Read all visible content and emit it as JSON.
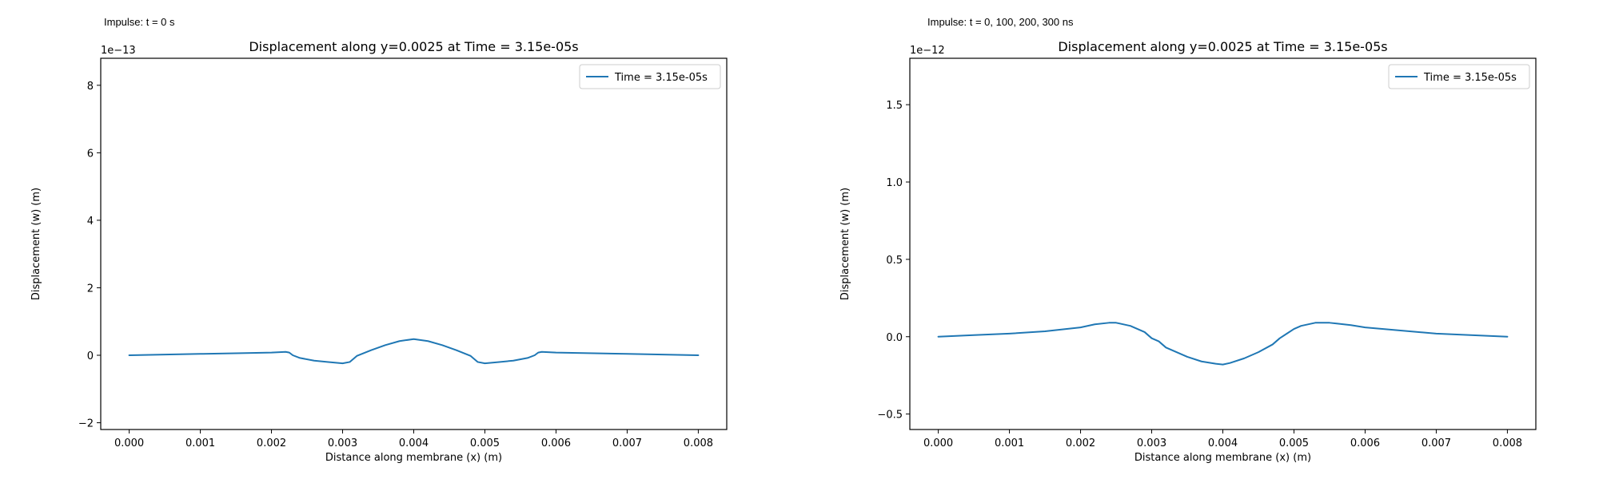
{
  "panels": {
    "left": {
      "caption": "Impulse: t = 0 s"
    },
    "right": {
      "caption": "Impulse: t = 0, 100, 200, 300 ns"
    }
  },
  "colors": {
    "series": "#1f77b4",
    "axes": "#000000"
  },
  "chart_data": [
    {
      "type": "line",
      "title": "Displacement along y=0.0025 at Time = 3.15e-05s",
      "xlabel": "Distance along membrane (x) (m)",
      "ylabel": "Displacement (w) (m)",
      "y_offset_label": "1e−13",
      "xlim": [
        -0.0004,
        0.0084
      ],
      "ylim": [
        -2.2,
        8.8
      ],
      "xticks": [
        0,
        0.001,
        0.002,
        0.003,
        0.004,
        0.005,
        0.006,
        0.007,
        0.008
      ],
      "xtick_labels": [
        "0.000",
        "0.001",
        "0.002",
        "0.003",
        "0.004",
        "0.005",
        "0.006",
        "0.007",
        "0.008"
      ],
      "yticks": [
        -2,
        0,
        2,
        4,
        6,
        8
      ],
      "ytick_labels": [
        "−2",
        "0",
        "2",
        "4",
        "6",
        "8"
      ],
      "legend_loc": "upper-right",
      "series": [
        {
          "name": "Time = 3.15e-05s",
          "x": [
            0,
            0.0005,
            0.001,
            0.0015,
            0.002,
            0.0022,
            0.00225,
            0.0023,
            0.0024,
            0.0026,
            0.0028,
            0.003,
            0.0031,
            0.0032,
            0.0034,
            0.0036,
            0.0038,
            0.004,
            0.0042,
            0.0044,
            0.0046,
            0.0048,
            0.0049,
            0.005,
            0.0052,
            0.0054,
            0.0056,
            0.0057,
            0.00575,
            0.0058,
            0.006,
            0.007,
            0.008
          ],
          "y": [
            0,
            0.02,
            0.04,
            0.06,
            0.08,
            0.1,
            0.08,
            0.0,
            -0.08,
            -0.16,
            -0.2,
            -0.24,
            -0.2,
            -0.02,
            0.15,
            0.3,
            0.42,
            0.48,
            0.42,
            0.3,
            0.15,
            -0.02,
            -0.2,
            -0.24,
            -0.2,
            -0.16,
            -0.08,
            0.0,
            0.08,
            0.1,
            0.08,
            0.04,
            0.0
          ]
        }
      ]
    },
    {
      "type": "line",
      "title": "Displacement along y=0.0025 at Time = 3.15e-05s",
      "xlabel": "Distance along membrane (x) (m)",
      "ylabel": "Displacement (w) (m)",
      "y_offset_label": "1e−12",
      "xlim": [
        -0.0004,
        0.0084
      ],
      "ylim": [
        -0.6,
        1.8
      ],
      "xticks": [
        0,
        0.001,
        0.002,
        0.003,
        0.004,
        0.005,
        0.006,
        0.007,
        0.008
      ],
      "xtick_labels": [
        "0.000",
        "0.001",
        "0.002",
        "0.003",
        "0.004",
        "0.005",
        "0.006",
        "0.007",
        "0.008"
      ],
      "yticks": [
        -0.5,
        0,
        0.5,
        1.0,
        1.5
      ],
      "ytick_labels": [
        "−0.5",
        "0.0",
        "0.5",
        "1.0",
        "1.5"
      ],
      "legend_loc": "upper-right",
      "series": [
        {
          "name": "Time = 3.15e-05s",
          "x": [
            0,
            0.0005,
            0.001,
            0.0015,
            0.002,
            0.0022,
            0.0024,
            0.0025,
            0.0027,
            0.0029,
            0.003,
            0.0031,
            0.0032,
            0.0033,
            0.0035,
            0.0037,
            0.0039,
            0.004,
            0.0041,
            0.0043,
            0.0045,
            0.0047,
            0.0048,
            0.0049,
            0.005,
            0.0051,
            0.0053,
            0.0055,
            0.0056,
            0.0058,
            0.006,
            0.007,
            0.008
          ],
          "y": [
            0,
            0.01,
            0.02,
            0.035,
            0.06,
            0.08,
            0.09,
            0.09,
            0.07,
            0.03,
            -0.01,
            -0.03,
            -0.07,
            -0.09,
            -0.13,
            -0.16,
            -0.175,
            -0.18,
            -0.17,
            -0.14,
            -0.1,
            -0.05,
            -0.01,
            0.02,
            0.05,
            0.07,
            0.09,
            0.09,
            0.085,
            0.075,
            0.06,
            0.02,
            0.0
          ]
        }
      ]
    }
  ]
}
